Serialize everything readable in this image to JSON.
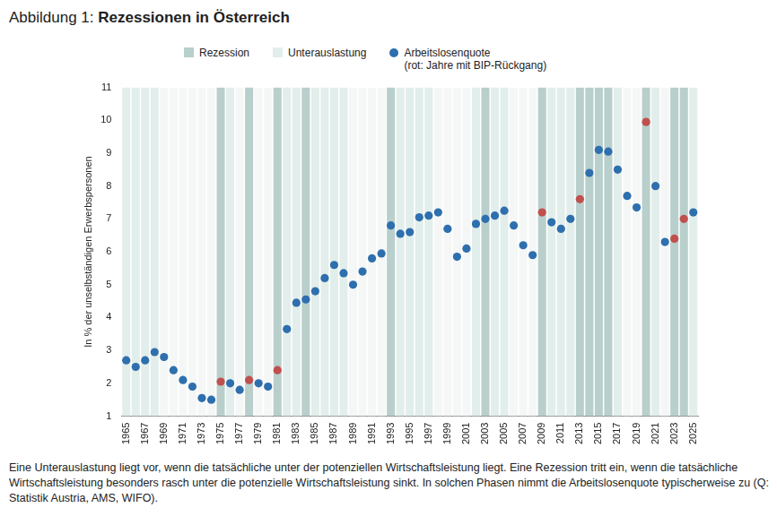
{
  "chart_data": {
    "type": "scatter",
    "title": "Abbildung 1: Rezessionen in Österreich",
    "y_label": "In % der unselbständigen Erwerbspersonen",
    "caption": "Eine Unterauslastung liegt vor, wenn die tatsächliche unter der potenziellen Wirtschaftsleistung liegt. Eine Rezession tritt ein, wenn die tatsächliche Wirtschaftsleistung besonders rasch unter die potenzielle Wirtschaftsleistung sinkt. In solchen Phasen nimmt die Arbeitslosenquote typischerweise zu (Q: Statistik Austria, AMS, WIFO).",
    "annotations": [
      "(rot: Jahre mit BIP-Rückgang)"
    ],
    "legend": "top",
    "grid": false,
    "x": [
      1965,
      1966,
      1967,
      1968,
      1969,
      1970,
      1971,
      1972,
      1973,
      1974,
      1975,
      1976,
      1977,
      1978,
      1979,
      1980,
      1981,
      1982,
      1983,
      1984,
      1985,
      1986,
      1987,
      1988,
      1989,
      1990,
      1991,
      1992,
      1993,
      1994,
      1995,
      1996,
      1997,
      1998,
      1999,
      2000,
      2001,
      2002,
      2003,
      2004,
      2005,
      2006,
      2007,
      2008,
      2009,
      2010,
      2011,
      2012,
      2013,
      2014,
      2015,
      2016,
      2017,
      2018,
      2019,
      2020,
      2021,
      2022,
      2023,
      2024,
      2025
    ],
    "xlim": [
      1964.5,
      2025.5
    ],
    "xticks": [
      1965,
      1967,
      1969,
      1971,
      1973,
      1975,
      1977,
      1979,
      1981,
      1983,
      1985,
      1987,
      1989,
      1991,
      1993,
      1995,
      1997,
      1999,
      2001,
      2003,
      2005,
      2007,
      2009,
      2011,
      2013,
      2015,
      2017,
      2019,
      2021,
      2023,
      2025
    ],
    "ylim": [
      1,
      11
    ],
    "yticks": [
      1,
      2,
      3,
      4,
      5,
      6,
      7,
      8,
      9,
      10,
      11
    ],
    "series": [
      {
        "name": "Arbeitslosenquote",
        "marker": "circle",
        "color": "#2e6fae",
        "values": [
          2.7,
          2.5,
          2.7,
          2.95,
          2.8,
          2.4,
          2.1,
          1.9,
          1.55,
          1.5,
          2.05,
          2.0,
          1.8,
          2.1,
          2.0,
          1.9,
          2.4,
          3.65,
          4.45,
          4.55,
          4.8,
          5.2,
          5.6,
          5.35,
          5.0,
          5.4,
          5.8,
          5.95,
          6.8,
          6.55,
          6.6,
          7.05,
          7.1,
          7.2,
          6.7,
          5.85,
          6.1,
          6.85,
          7.0,
          7.1,
          7.25,
          6.8,
          6.2,
          5.9,
          7.2,
          6.9,
          6.7,
          7.0,
          7.6,
          8.4,
          9.1,
          9.05,
          8.5,
          7.7,
          7.35,
          9.95,
          8.0,
          6.3,
          6.4,
          7.0,
          7.2
        ],
        "colors": [
          "#2e6fae",
          "#2e6fae",
          "#2e6fae",
          "#2e6fae",
          "#2e6fae",
          "#2e6fae",
          "#2e6fae",
          "#2e6fae",
          "#2e6fae",
          "#2e6fae",
          "#c0504d",
          "#2e6fae",
          "#2e6fae",
          "#c0504d",
          "#2e6fae",
          "#2e6fae",
          "#c0504d",
          "#2e6fae",
          "#2e6fae",
          "#2e6fae",
          "#2e6fae",
          "#2e6fae",
          "#2e6fae",
          "#2e6fae",
          "#2e6fae",
          "#2e6fae",
          "#2e6fae",
          "#2e6fae",
          "#2e6fae",
          "#2e6fae",
          "#2e6fae",
          "#2e6fae",
          "#2e6fae",
          "#2e6fae",
          "#2e6fae",
          "#2e6fae",
          "#2e6fae",
          "#2e6fae",
          "#2e6fae",
          "#2e6fae",
          "#2e6fae",
          "#2e6fae",
          "#2e6fae",
          "#2e6fae",
          "#c0504d",
          "#2e6fae",
          "#2e6fae",
          "#2e6fae",
          "#c0504d",
          "#2e6fae",
          "#2e6fae",
          "#2e6fae",
          "#2e6fae",
          "#2e6fae",
          "#2e6fae",
          "#c0504d",
          "#2e6fae",
          "#2e6fae",
          "#c0504d",
          "#c0504d",
          "#2e6fae"
        ]
      }
    ],
    "bands": [
      {
        "name": "Rezession",
        "color": "#b8cfcc",
        "ranges": [
          [
            1975,
            1975
          ],
          [
            1978,
            1978
          ],
          [
            1981,
            1981
          ],
          [
            1984,
            1984
          ],
          [
            1993,
            1993
          ],
          [
            2003,
            2003
          ],
          [
            2009,
            2009
          ],
          [
            2013,
            2016
          ],
          [
            2020,
            2020
          ],
          [
            2023,
            2024
          ]
        ]
      },
      {
        "name": "Unterauslastung",
        "color": "#e2eeeb",
        "ranges": [
          [
            1965,
            1968
          ],
          [
            1975,
            1976
          ],
          [
            1978,
            1978
          ],
          [
            1981,
            1988
          ],
          [
            1993,
            1997
          ],
          [
            2002,
            2005
          ],
          [
            2009,
            2012
          ],
          [
            2013,
            2017
          ],
          [
            2020,
            2021
          ],
          [
            2023,
            2025
          ]
        ]
      }
    ]
  }
}
